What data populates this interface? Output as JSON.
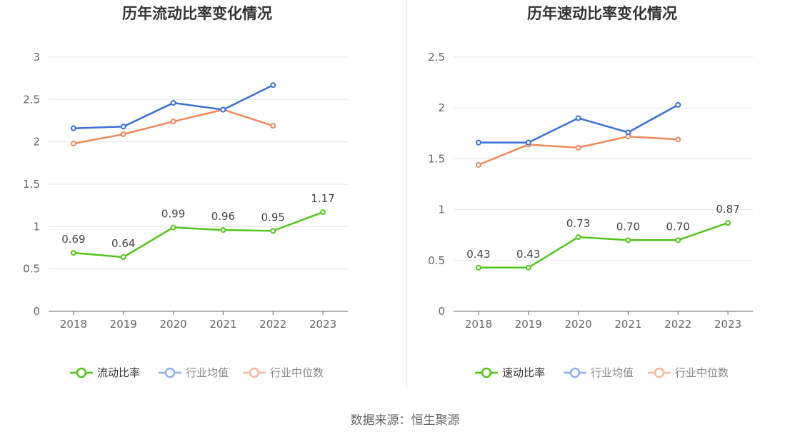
{
  "source_text": "数据来源：恒生聚源",
  "chart_data": [
    {
      "type": "line",
      "title": "历年流动比率变化情况",
      "x": [
        "2018",
        "2019",
        "2020",
        "2021",
        "2022",
        "2023"
      ],
      "ylim": [
        0,
        3
      ],
      "yticks": [
        "0",
        "0.5",
        "1",
        "1.5",
        "2",
        "2.5",
        "3"
      ],
      "grid": true,
      "legend_position": "bottom",
      "series": [
        {
          "name": "流动比率",
          "color": "#52c41a",
          "values": [
            0.69,
            0.64,
            0.99,
            0.96,
            0.95,
            1.17
          ],
          "labels": [
            "0.69",
            "0.64",
            "0.99",
            "0.96",
            "0.95",
            "1.17"
          ]
        },
        {
          "name": "行业均值",
          "color": "#3a6fd8",
          "values": [
            2.16,
            2.18,
            2.46,
            2.38,
            2.67,
            null
          ]
        },
        {
          "name": "行业中位数",
          "color": "#f0885a",
          "values": [
            1.98,
            2.09,
            2.24,
            2.38,
            2.19,
            null
          ]
        }
      ]
    },
    {
      "type": "line",
      "title": "历年速动比率变化情况",
      "x": [
        "2018",
        "2019",
        "2020",
        "2021",
        "2022",
        "2023"
      ],
      "ylim": [
        0,
        2.5
      ],
      "yticks": [
        "0",
        "0.5",
        "1",
        "1.5",
        "2",
        "2.5"
      ],
      "grid": true,
      "legend_position": "bottom",
      "series": [
        {
          "name": "速动比率",
          "color": "#52c41a",
          "values": [
            0.43,
            0.43,
            0.73,
            0.7,
            0.7,
            0.87
          ],
          "labels": [
            "0.43",
            "0.43",
            "0.73",
            "0.70",
            "0.70",
            "0.87"
          ]
        },
        {
          "name": "行业均值",
          "color": "#3a6fd8",
          "values": [
            1.66,
            1.66,
            1.9,
            1.76,
            2.03,
            null
          ]
        },
        {
          "name": "行业中位数",
          "color": "#f0885a",
          "values": [
            1.44,
            1.64,
            1.61,
            1.72,
            1.69,
            null
          ]
        }
      ]
    }
  ]
}
